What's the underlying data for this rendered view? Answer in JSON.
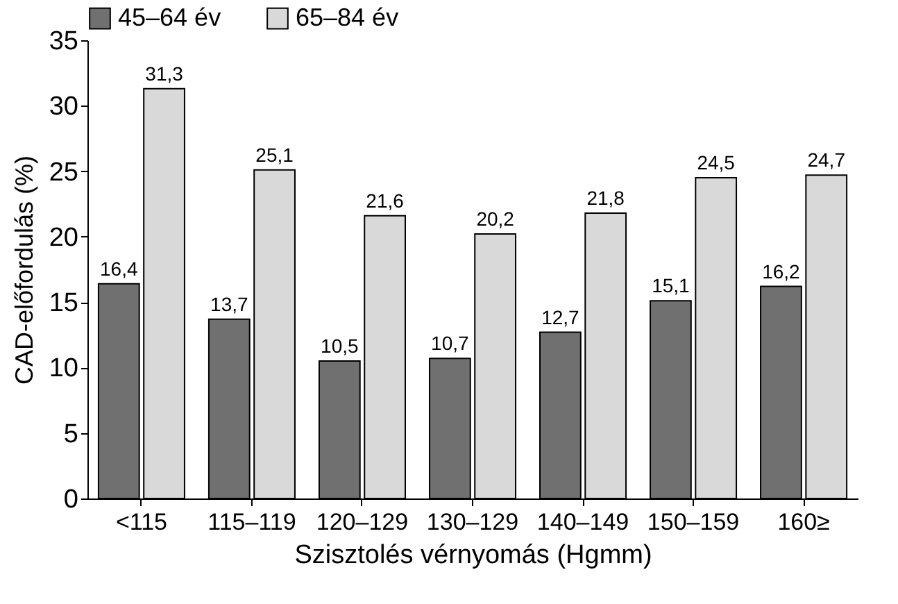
{
  "chart_data": {
    "type": "bar",
    "xlabel": "Szisztolés vérnyomás (Hgmm)",
    "ylabel": "CAD-előfordulás (%)",
    "categories": [
      "<115",
      "115–119",
      "120–129",
      "130–129",
      "140–149",
      "150–159",
      "160≥"
    ],
    "series": [
      {
        "name": "45–64 év",
        "color": "#707070",
        "values": [
          16.4,
          13.7,
          10.5,
          10.7,
          12.7,
          15.1,
          16.2
        ],
        "value_labels": [
          "16,4",
          "13,7",
          "10,5",
          "10,7",
          "12,7",
          "15,1",
          "16,2"
        ]
      },
      {
        "name": "65–84 év",
        "color": "#d9d9d9",
        "values": [
          31.3,
          25.1,
          21.6,
          20.2,
          21.8,
          24.5,
          24.7
        ],
        "value_labels": [
          "31,3",
          "25,1",
          "21,6",
          "20,2",
          "21,8",
          "24,5",
          "24,7"
        ]
      }
    ],
    "ylim": [
      0,
      35
    ],
    "yticks": [
      0,
      5,
      10,
      15,
      20,
      25,
      30,
      35
    ],
    "legend": "top"
  }
}
